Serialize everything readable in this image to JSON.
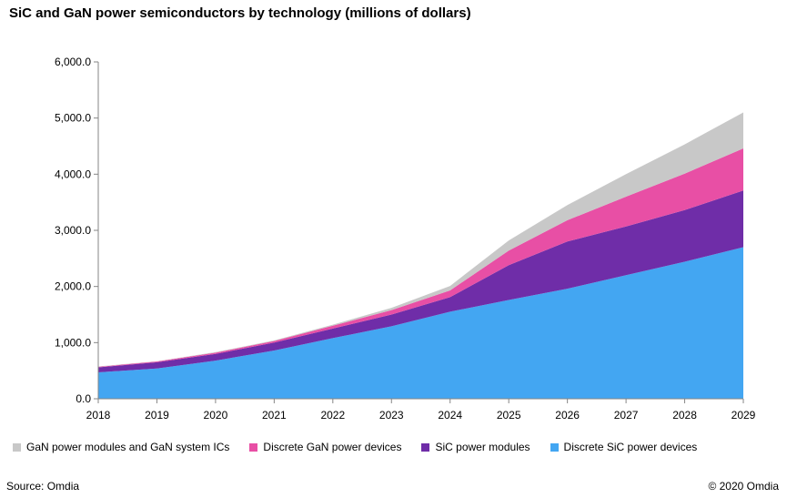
{
  "chart_data": {
    "type": "area",
    "stacked": true,
    "title": "SiC and GaN power semiconductors by technology (millions of dollars)",
    "x": [
      "2018",
      "2019",
      "2020",
      "2021",
      "2022",
      "2023",
      "2024",
      "2025",
      "2026",
      "2027",
      "2028",
      "2029"
    ],
    "ylim": [
      0,
      6000
    ],
    "yticks": [
      "0.0",
      "1,000.0",
      "2,000.0",
      "3,000.0",
      "4,000.0",
      "5,000.0",
      "6,000.0"
    ],
    "grid": false,
    "legend_position": "bottom",
    "series": [
      {
        "name": "Discrete SiC power devices",
        "color": "#43a6f2",
        "values": [
          470,
          540,
          680,
          860,
          1080,
          1290,
          1550,
          1760,
          1960,
          2200,
          2440,
          2700
        ]
      },
      {
        "name": "SiC power modules",
        "color": "#6f2da8",
        "values": [
          90,
          110,
          120,
          140,
          170,
          210,
          260,
          620,
          840,
          870,
          920,
          1010
        ]
      },
      {
        "name": "Discrete GaN power devices",
        "color": "#e84fa5",
        "values": [
          10,
          15,
          20,
          30,
          50,
          80,
          120,
          260,
          380,
          530,
          650,
          750
        ]
      },
      {
        "name": "GaN power modules and GaN system ICs",
        "color": "#c8c8c8",
        "values": [
          5,
          5,
          10,
          10,
          20,
          40,
          80,
          180,
          270,
          400,
          520,
          640
        ]
      }
    ]
  },
  "footer": {
    "source": "Source: Omdia",
    "copyright": "© 2020 Omdia"
  }
}
